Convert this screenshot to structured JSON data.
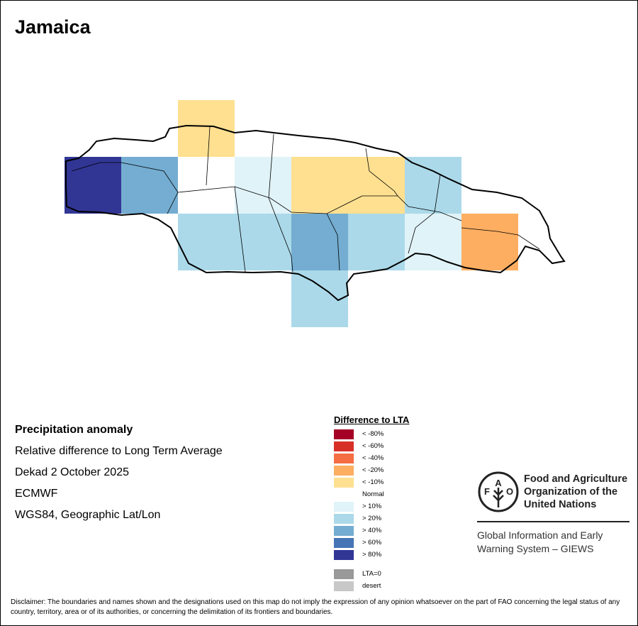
{
  "title": "Jamaica",
  "info": {
    "heading": "Precipitation anomaly",
    "subtitle": "Relative difference to Long Term Average",
    "period": "Dekad 2 October 2025",
    "source": "ECMWF",
    "projection": "WGS84, Geographic Lat/Lon"
  },
  "legend": {
    "title": "Difference to LTA",
    "items": [
      {
        "label": "< -80%",
        "color": "#a50026"
      },
      {
        "label": "< -60%",
        "color": "#d73027"
      },
      {
        "label": "< -40%",
        "color": "#f46d43"
      },
      {
        "label": "< -20%",
        "color": "#fdae61"
      },
      {
        "label": "< -10%",
        "color": "#fee090"
      },
      {
        "label": "Normal",
        "color": "#ffffff"
      },
      {
        "label": "> 10%",
        "color": "#e0f3f8"
      },
      {
        "label": "> 20%",
        "color": "#abd9e9"
      },
      {
        "label": "> 40%",
        "color": "#74add1"
      },
      {
        "label": "> 60%",
        "color": "#4575b4"
      },
      {
        "label": "> 80%",
        "color": "#313695"
      }
    ],
    "extra": [
      {
        "label": "LTA=0",
        "color": "#999999"
      },
      {
        "label": "desert",
        "color": "#c8c8c8"
      }
    ]
  },
  "grid_classes": [
    [
      "",
      "",
      "< -10%",
      "",
      "",
      "",
      "",
      "",
      ""
    ],
    [
      "> 80%",
      "> 40%",
      "Normal",
      "> 10%",
      "< -10%",
      "< -10%",
      "> 20%",
      "",
      ""
    ],
    [
      "",
      "",
      "> 20%",
      "> 20%",
      "> 40%",
      "> 20%",
      "> 10%",
      "< -20%",
      ""
    ],
    [
      "",
      "",
      "",
      "",
      "> 20%",
      "",
      "",
      "",
      ""
    ]
  ],
  "logo": {
    "org_line1": "Food and Agriculture",
    "org_line2": "Organization of the",
    "org_line3": "United Nations",
    "giews_line1": "Global Information and Early",
    "giews_line2": "Warning System – GIEWS",
    "seal_text": "FAO FIAT PANIS"
  },
  "disclaimer": "Disclaimer: The boundaries and names shown and the designations used on this map do not imply the expression of any opinion whatsoever on the part of FAO concerning the legal status of any country, territory, area or of its authorities, or concerning the delimitation of its frontiers and boundaries."
}
